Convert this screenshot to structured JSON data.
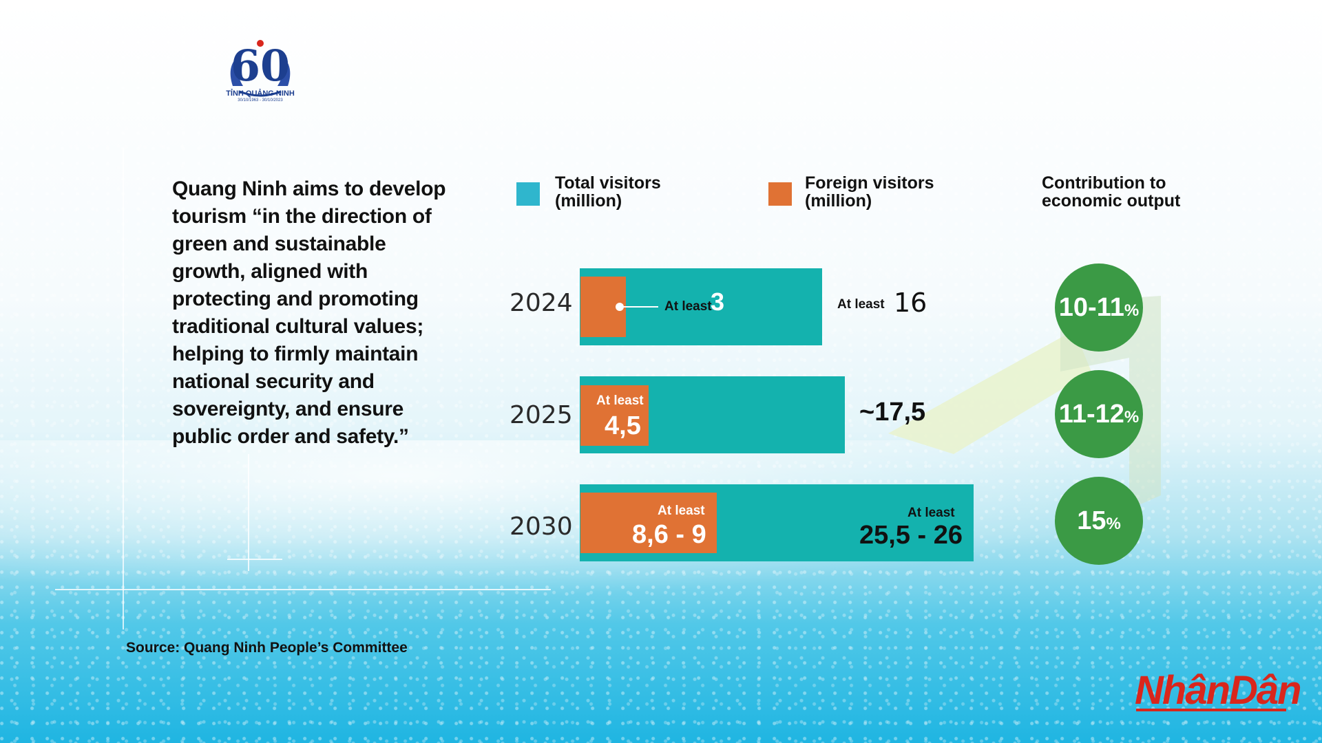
{
  "logo": {
    "title": "TỈNH QUẢNG NINH",
    "dates": "30/10/1963 - 30/10/2023"
  },
  "quote": "Quang Ninh aims to develop tourism “in the direction of green and sustainable growth, aligned with protecting and promoting traditional cultural values; helping to firmly maintain national security and sovereignty, and ensure public order and safety.”",
  "source": "Source: Quang Ninh People’s Committee",
  "brand": "NhânDân",
  "colors": {
    "total": "#14b2ae",
    "foreign": "#e07234",
    "contribution": "#3b9a45"
  },
  "chart_data": {
    "type": "bar",
    "orientation": "horizontal",
    "legend": {
      "total_line1": "Total visitors",
      "total_line2": "(million)",
      "foreign_line1": "Foreign visitors",
      "foreign_line2": "(million)",
      "contribution_line1": "Contribution to",
      "contribution_line2": "economic output"
    },
    "categories": [
      "2024",
      "2025",
      "2030"
    ],
    "series": [
      {
        "name": "Total visitors (million)",
        "values": [
          16,
          17.5,
          26
        ]
      },
      {
        "name": "Foreign visitors (million)",
        "values": [
          3,
          4.5,
          9
        ]
      }
    ],
    "labels": {
      "at_least": "At least",
      "total": [
        "16",
        "~17,5",
        "25,5 - 26"
      ],
      "foreign": [
        "3",
        "4,5",
        "8,6 - 9"
      ],
      "contribution": [
        "10-11",
        "11-12",
        "15"
      ],
      "percent": "%"
    }
  }
}
